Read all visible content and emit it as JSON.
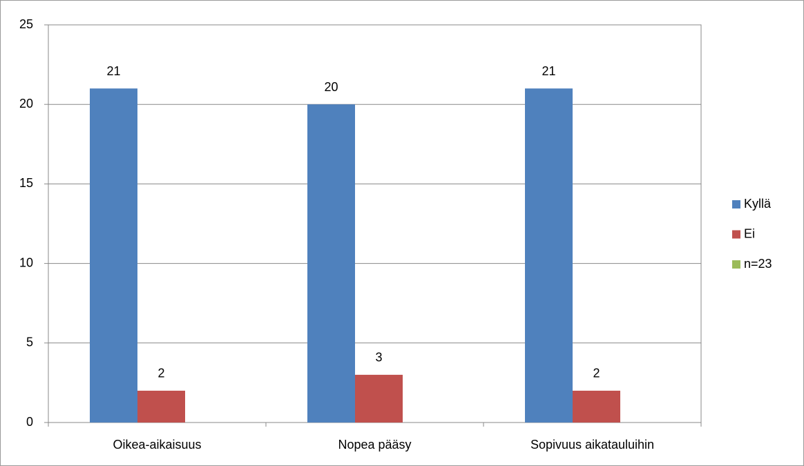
{
  "chart_data": {
    "type": "bar",
    "categories": [
      "Oikea-aikaisuus",
      "Nopea pääsy",
      "Sopivuus aikatauluihin"
    ],
    "series": [
      {
        "name": "Kyllä",
        "color": "#4f81bd",
        "values": [
          21,
          20,
          21
        ]
      },
      {
        "name": "Ei",
        "color": "#c0504d",
        "values": [
          2,
          3,
          2
        ]
      },
      {
        "name": "n=23",
        "color": "#9bbb59",
        "values": [
          null,
          null,
          null
        ]
      }
    ],
    "ylim": [
      0,
      25
    ],
    "yticks": [
      0,
      5,
      10,
      15,
      20,
      25
    ],
    "grid": true,
    "legend": "right"
  }
}
